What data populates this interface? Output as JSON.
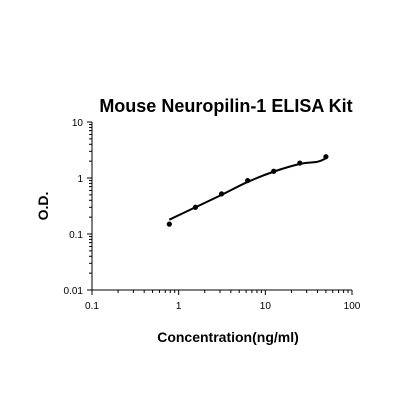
{
  "chart_data": {
    "type": "scatter",
    "title": "Mouse Neuropilin-1 ELISA Kit",
    "xlabel": "Concentration(ng/ml)",
    "ylabel": "O.D.",
    "x_scale": "log",
    "y_scale": "log",
    "xlim": [
      0.1,
      100
    ],
    "ylim": [
      0.01,
      10
    ],
    "x_ticks": [
      "0.1",
      "1",
      "10",
      "100"
    ],
    "y_ticks": [
      "0.01",
      "0.1",
      "1",
      "10"
    ],
    "grid": false,
    "series": [
      {
        "x": [
          0.78,
          1.56,
          3.125,
          6.25,
          12.5,
          25,
          50
        ],
        "y": [
          0.15,
          0.3,
          0.52,
          0.9,
          1.32,
          1.85,
          2.4
        ],
        "color": "#000000"
      }
    ],
    "fit_curve": {
      "x": [
        0.78,
        1.56,
        3.125,
        6.25,
        12.5,
        25,
        40,
        50
      ],
      "y": [
        0.18,
        0.3,
        0.5,
        0.85,
        1.3,
        1.78,
        1.95,
        2.25
      ],
      "color": "#000000"
    }
  }
}
